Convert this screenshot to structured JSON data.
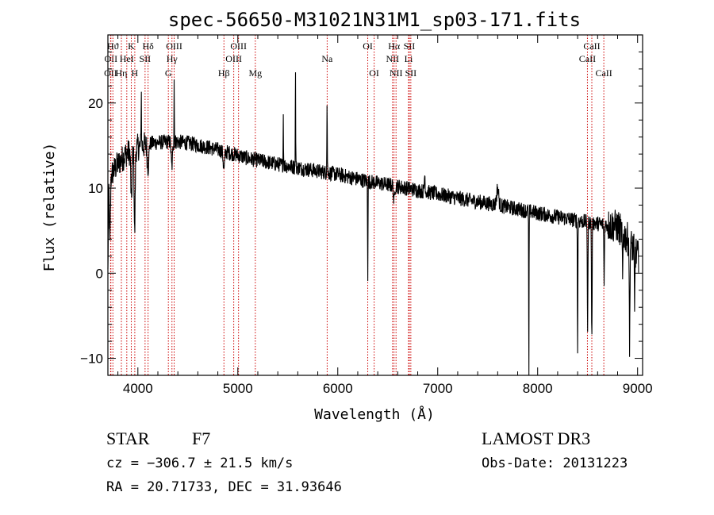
{
  "chart_data": {
    "type": "line",
    "title": "spec-56650-M31021N31M1_sp03-171.fits",
    "xlabel": "Wavelength (Å)",
    "ylabel": "Flux (relative)",
    "xlim": [
      3700,
      9050
    ],
    "ylim": [
      -12,
      28
    ],
    "x_ticks": [
      {
        "value": 4000,
        "label": "4000"
      },
      {
        "value": 5000,
        "label": "5000"
      },
      {
        "value": 6000,
        "label": "6000"
      },
      {
        "value": 7000,
        "label": "7000"
      },
      {
        "value": 8000,
        "label": "8000"
      },
      {
        "value": 9000,
        "label": "9000"
      }
    ],
    "y_ticks": [
      {
        "value": -10,
        "label": "−10"
      },
      {
        "value": 0,
        "label": "0"
      },
      {
        "value": 10,
        "label": "10"
      },
      {
        "value": 20,
        "label": "20"
      }
    ],
    "x_minor_step": 200,
    "y_minor_step": 2,
    "series": [
      {
        "name": "spectrum",
        "continuum": [
          [
            3700,
            0
          ],
          [
            3710,
            11
          ],
          [
            3780,
            12.5
          ],
          [
            3880,
            14
          ],
          [
            4000,
            14.8
          ],
          [
            4150,
            15.3
          ],
          [
            4350,
            15.5
          ],
          [
            4500,
            15.3
          ],
          [
            4700,
            14.8
          ],
          [
            4900,
            14.2
          ],
          [
            5100,
            13.5
          ],
          [
            5400,
            12.8
          ],
          [
            5700,
            12.2
          ],
          [
            6000,
            11.6
          ],
          [
            6300,
            10.8
          ],
          [
            6600,
            10.2
          ],
          [
            7000,
            9.3
          ],
          [
            7300,
            8.6
          ],
          [
            7600,
            8.0
          ],
          [
            7900,
            7.3
          ],
          [
            8200,
            6.6
          ],
          [
            8500,
            6.0
          ],
          [
            8800,
            5.5
          ],
          [
            8900,
            4.0
          ],
          [
            9000,
            2.0
          ],
          [
            9050,
            1.0
          ]
        ],
        "features": [
          {
            "x": 3720,
            "depth": -8,
            "width": 10
          },
          {
            "x": 3935,
            "depth": -6,
            "width": 12
          },
          {
            "x": 3968,
            "depth": -10,
            "width": 10
          },
          {
            "x": 4034,
            "depth": 7,
            "width": 4
          },
          {
            "x": 4102,
            "depth": -3,
            "width": 14
          },
          {
            "x": 4340,
            "depth": -3,
            "width": 14
          },
          {
            "x": 4363,
            "depth": 8,
            "width": 3
          },
          {
            "x": 4861,
            "depth": -2,
            "width": 15
          },
          {
            "x": 5455,
            "depth": 6,
            "width": 4
          },
          {
            "x": 5577,
            "depth": 11,
            "width": 4
          },
          {
            "x": 5893,
            "depth": 8,
            "width": 5
          },
          {
            "x": 6300,
            "depth": -11,
            "width": 4
          },
          {
            "x": 6563,
            "depth": -2,
            "width": 10
          },
          {
            "x": 6870,
            "depth": 2,
            "width": 8
          },
          {
            "x": 7600,
            "depth": 2,
            "width": 20
          },
          {
            "x": 7912,
            "depth": -21,
            "width": 4
          },
          {
            "x": 8400,
            "depth": -16,
            "width": 5
          },
          {
            "x": 8500,
            "depth": -13,
            "width": 6
          },
          {
            "x": 8542,
            "depth": -14,
            "width": 6
          },
          {
            "x": 8665,
            "depth": -7,
            "width": 6
          },
          {
            "x": 8850,
            "depth": -6,
            "width": 6
          },
          {
            "x": 8920,
            "depth": -13,
            "width": 6
          },
          {
            "x": 8970,
            "depth": -8,
            "width": 5
          }
        ],
        "noise_amplitude": 0.9
      }
    ],
    "line_markers": [
      {
        "label": "OII",
        "wavelength": 3727,
        "row": 3
      },
      {
        "label": "OII",
        "wavelength": 3730,
        "row": 2
      },
      {
        "label": "Hϑ",
        "wavelength": 3750,
        "row": 1
      },
      {
        "label": "Hη",
        "wavelength": 3835,
        "row": 3
      },
      {
        "label": "HeI",
        "wavelength": 3889,
        "row": 2
      },
      {
        "label": "K",
        "wavelength": 3934,
        "row": 1
      },
      {
        "label": "H",
        "wavelength": 3969,
        "row": 3
      },
      {
        "label": "SII",
        "wavelength": 4072,
        "row": 2
      },
      {
        "label": "Hδ",
        "wavelength": 4102,
        "row": 1
      },
      {
        "label": "G",
        "wavelength": 4305,
        "row": 3
      },
      {
        "label": "Hγ",
        "wavelength": 4341,
        "row": 2
      },
      {
        "label": "OIII",
        "wavelength": 4363,
        "row": 1
      },
      {
        "label": "Hβ",
        "wavelength": 4861,
        "row": 3
      },
      {
        "label": "OIII",
        "wavelength": 4959,
        "row": 2
      },
      {
        "label": "OIII",
        "wavelength": 5007,
        "row": 1
      },
      {
        "label": "Mg",
        "wavelength": 5175,
        "row": 3
      },
      {
        "label": "Na",
        "wavelength": 5894,
        "row": 2
      },
      {
        "label": "OI",
        "wavelength": 6300,
        "row": 1
      },
      {
        "label": "OI",
        "wavelength": 6364,
        "row": 3
      },
      {
        "label": "NII",
        "wavelength": 6548,
        "row": 2
      },
      {
        "label": "Hα",
        "wavelength": 6563,
        "row": 1
      },
      {
        "label": "NII",
        "wavelength": 6583,
        "row": 3
      },
      {
        "label": "Li",
        "wavelength": 6708,
        "row": 2
      },
      {
        "label": "SII",
        "wavelength": 6716,
        "row": 1
      },
      {
        "label": "SII",
        "wavelength": 6731,
        "row": 3
      },
      {
        "label": "CaII",
        "wavelength": 8498,
        "row": 2
      },
      {
        "label": "CaII",
        "wavelength": 8542,
        "row": 1
      },
      {
        "label": "CaII",
        "wavelength": 8662,
        "row": 3
      }
    ]
  },
  "info": {
    "object_class": "STAR",
    "subclass": "F7",
    "survey": "LAMOST DR3",
    "redshift": "cz = −306.7 ± 21.5 km/s",
    "obs_date": "Obs-Date: 20131223",
    "coordinates": "RA =  20.71733, DEC =  31.93646"
  },
  "colors": {
    "axis": "#000000",
    "spectrum": "#000000",
    "marker_line": "#cc0000",
    "background": "#ffffff"
  }
}
